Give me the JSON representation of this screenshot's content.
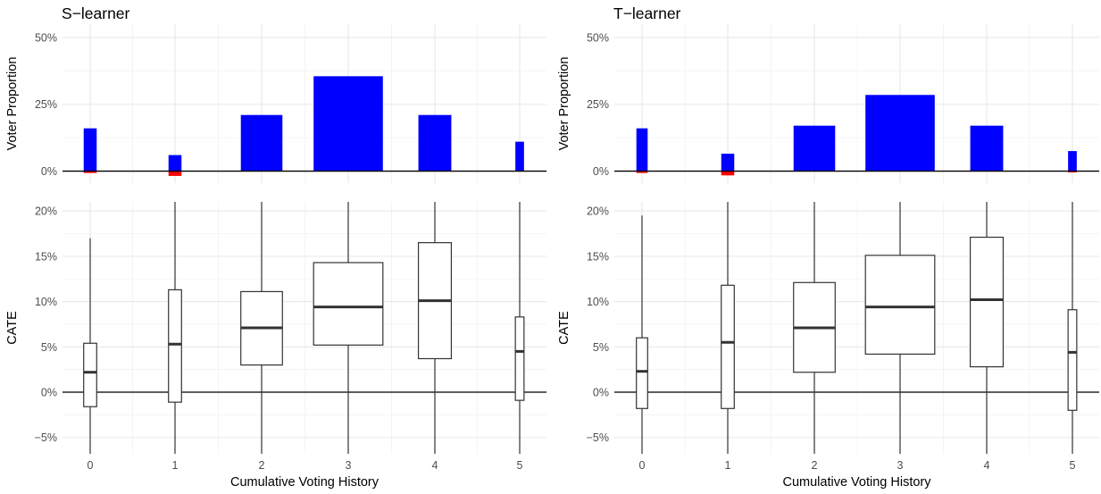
{
  "chart_data": [
    {
      "type": "bar",
      "title": "S−learner",
      "xlabel": "",
      "ylabel": "Voter Proportion",
      "ylim": [
        -0.045,
        0.55
      ],
      "yticks": [
        0,
        0.25,
        0.5
      ],
      "ytick_labels": [
        "0%",
        "25%",
        "50%"
      ],
      "categories": [
        "0",
        "1",
        "2",
        "3",
        "4",
        "5"
      ],
      "bar_width_fraction": [
        0.15,
        0.15,
        0.48,
        0.8,
        0.38,
        0.1
      ],
      "series": [
        {
          "color": "#0000ff",
          "values": [
            0.16,
            0.06,
            0.21,
            0.355,
            0.21,
            0.11
          ]
        },
        {
          "color": "#ff0000",
          "values": [
            -0.007,
            -0.018,
            0,
            0,
            0,
            0
          ]
        }
      ],
      "grid": true
    },
    {
      "type": "bar",
      "title": "T−learner",
      "xlabel": "",
      "ylabel": "Voter Proportion",
      "ylim": [
        -0.045,
        0.55
      ],
      "yticks": [
        0,
        0.25,
        0.5
      ],
      "ytick_labels": [
        "0%",
        "25%",
        "50%"
      ],
      "categories": [
        "0",
        "1",
        "2",
        "3",
        "4",
        "5"
      ],
      "bar_width_fraction": [
        0.13,
        0.15,
        0.48,
        0.8,
        0.38,
        0.1
      ],
      "series": [
        {
          "color": "#0000ff",
          "values": [
            0.16,
            0.065,
            0.17,
            0.285,
            0.17,
            0.075
          ]
        },
        {
          "color": "#ff0000",
          "values": [
            -0.007,
            -0.016,
            0,
            0,
            0,
            -0.005
          ]
        }
      ],
      "grid": true
    },
    {
      "type": "box",
      "title": "",
      "xlabel": "Cumulative Voting History",
      "ylabel": "CATE",
      "ylim": [
        -0.068,
        0.21
      ],
      "yticks": [
        -0.05,
        0,
        0.05,
        0.1,
        0.15,
        0.2
      ],
      "ytick_labels": [
        "−5%",
        "0%",
        "5%",
        "10%",
        "15%",
        "20%"
      ],
      "categories": [
        "0",
        "1",
        "2",
        "3",
        "4",
        "5"
      ],
      "box_width_fraction": [
        0.15,
        0.15,
        0.48,
        0.8,
        0.38,
        0.1
      ],
      "boxes": [
        {
          "whisker_low": -0.068,
          "q1": -0.016,
          "median": 0.022,
          "q3": 0.054,
          "whisker_high": 0.17
        },
        {
          "whisker_low": -0.068,
          "q1": -0.011,
          "median": 0.053,
          "q3": 0.113,
          "whisker_high": 0.21
        },
        {
          "whisker_low": -0.068,
          "q1": 0.03,
          "median": 0.071,
          "q3": 0.111,
          "whisker_high": 0.21
        },
        {
          "whisker_low": -0.068,
          "q1": 0.052,
          "median": 0.094,
          "q3": 0.143,
          "whisker_high": 0.21
        },
        {
          "whisker_low": -0.068,
          "q1": 0.037,
          "median": 0.101,
          "q3": 0.165,
          "whisker_high": 0.21
        },
        {
          "whisker_low": -0.068,
          "q1": -0.009,
          "median": 0.045,
          "q3": 0.083,
          "whisker_high": 0.21
        }
      ],
      "grid": true
    },
    {
      "type": "box",
      "title": "",
      "xlabel": "Cumulative Voting History",
      "ylabel": "CATE",
      "ylim": [
        -0.068,
        0.21
      ],
      "yticks": [
        -0.05,
        0,
        0.05,
        0.1,
        0.15,
        0.2
      ],
      "ytick_labels": [
        "−5%",
        "0%",
        "5%",
        "10%",
        "15%",
        "20%"
      ],
      "categories": [
        "0",
        "1",
        "2",
        "3",
        "4",
        "5"
      ],
      "box_width_fraction": [
        0.13,
        0.15,
        0.48,
        0.8,
        0.38,
        0.1
      ],
      "boxes": [
        {
          "whisker_low": -0.068,
          "q1": -0.018,
          "median": 0.023,
          "q3": 0.06,
          "whisker_high": 0.195
        },
        {
          "whisker_low": -0.068,
          "q1": -0.018,
          "median": 0.055,
          "q3": 0.118,
          "whisker_high": 0.21
        },
        {
          "whisker_low": -0.068,
          "q1": 0.022,
          "median": 0.071,
          "q3": 0.121,
          "whisker_high": 0.21
        },
        {
          "whisker_low": -0.068,
          "q1": 0.042,
          "median": 0.094,
          "q3": 0.151,
          "whisker_high": 0.21
        },
        {
          "whisker_low": -0.068,
          "q1": 0.028,
          "median": 0.102,
          "q3": 0.171,
          "whisker_high": 0.21
        },
        {
          "whisker_low": -0.068,
          "q1": -0.02,
          "median": 0.044,
          "q3": 0.091,
          "whisker_high": 0.21
        }
      ],
      "grid": true
    }
  ]
}
